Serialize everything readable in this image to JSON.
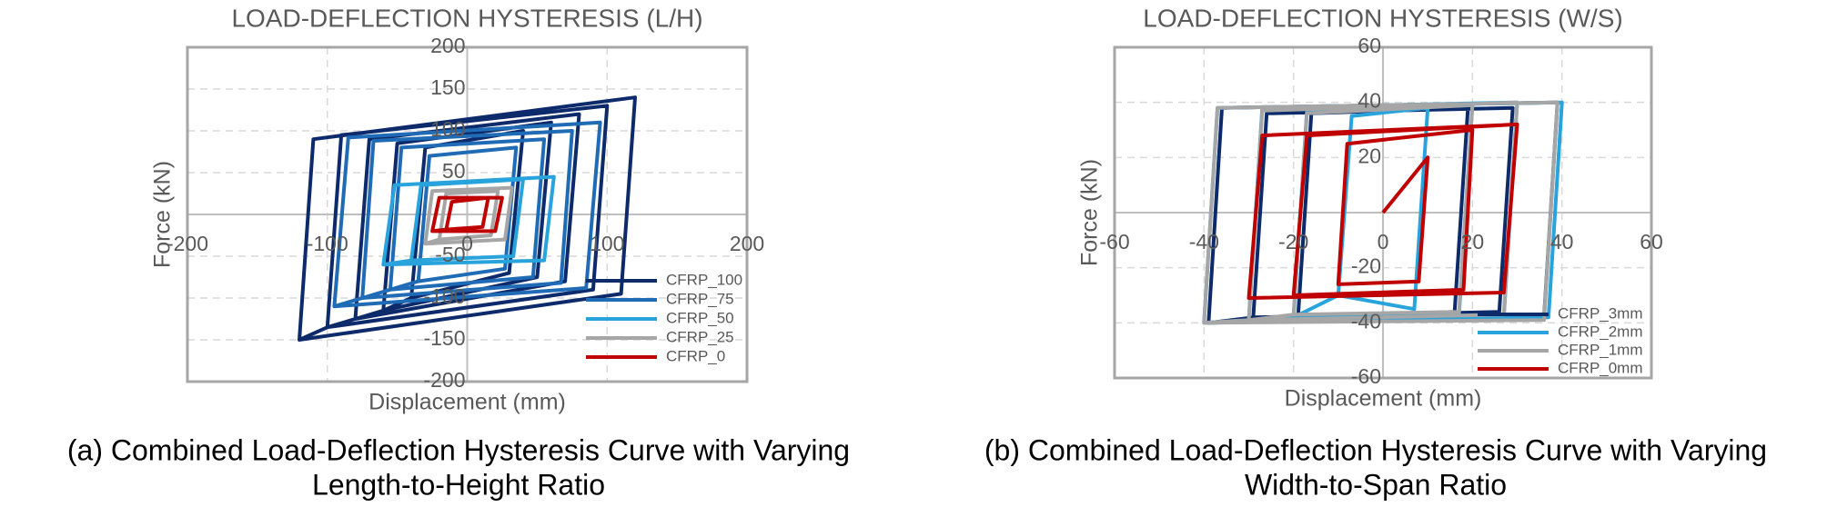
{
  "chart_data": [
    {
      "type": "line",
      "title": "LOAD-DEFLECTION HYSTERESIS (L/H)",
      "xlabel": "Displacement (mm)",
      "ylabel": "Force (kN)",
      "caption": [
        "(a) Combined Load-Deflection Hysteresis Curve with Varying",
        "Length-to-Height Ratio"
      ],
      "xlim": [
        -200,
        200
      ],
      "ylim": [
        -200,
        200
      ],
      "xticks": [
        -200,
        -100,
        0,
        100,
        200
      ],
      "yticks": [
        -200,
        -150,
        -100,
        -50,
        50,
        100,
        150,
        200
      ],
      "grid": true,
      "legend": "lower right",
      "series": [
        {
          "name": "CFRP_100",
          "color": "#0d2a6b",
          "x": [
            -40,
            -30,
            40,
            30,
            -40,
            -60,
            -50,
            60,
            50,
            -60,
            -80,
            -70,
            80,
            70,
            -80,
            -100,
            -90,
            100,
            90,
            -100,
            -120,
            -110,
            120,
            110,
            -120
          ],
          "y": [
            -100,
            80,
            100,
            -70,
            -100,
            -115,
            85,
            110,
            -75,
            -115,
            -125,
            90,
            120,
            -80,
            -125,
            -135,
            95,
            130,
            -90,
            -135,
            -150,
            90,
            140,
            -95,
            -150
          ]
        },
        {
          "name": "CFRP_75",
          "color": "#1f6bb5",
          "x": [
            -35,
            -27,
            35,
            27,
            -35,
            -55,
            -47,
            55,
            47,
            -55,
            -75,
            -67,
            75,
            67,
            -75,
            -95,
            -85,
            95,
            85,
            -95
          ],
          "y": [
            -80,
            70,
            80,
            -65,
            -80,
            -90,
            80,
            90,
            -75,
            -90,
            -100,
            88,
            100,
            -82,
            -100,
            -110,
            92,
            110,
            -88,
            -110
          ]
        },
        {
          "name": "CFRP_50",
          "color": "#29a3dc",
          "x": [
            -40,
            -33,
            40,
            33,
            -40,
            -60,
            -52,
            62,
            55,
            -60
          ],
          "y": [
            -55,
            35,
            42,
            -50,
            -55,
            -60,
            35,
            45,
            -55,
            -60
          ]
        },
        {
          "name": "CFRP_25",
          "color": "#a6a6a6",
          "x": [
            -20,
            -15,
            22,
            17,
            -20,
            -30,
            -25,
            32,
            27,
            -30
          ],
          "y": [
            -30,
            25,
            28,
            -25,
            -30,
            -35,
            28,
            32,
            -30,
            -35
          ]
        },
        {
          "name": "CFRP_0",
          "color": "#c00000",
          "x": [
            -15,
            -11,
            15,
            11,
            -15,
            -25,
            -20,
            25,
            20,
            -25
          ],
          "y": [
            -18,
            15,
            20,
            -15,
            -18,
            -20,
            20,
            20,
            -20,
            -20
          ]
        }
      ]
    },
    {
      "type": "line",
      "title": "LOAD-DEFLECTION HYSTERESIS (W/S)",
      "xlabel": "Displacement (mm)",
      "ylabel": "Force (kN)",
      "caption": [
        "(b) Combined Load-Deflection Hysteresis Curve with Varying",
        "Width-to-Span Ratio"
      ],
      "xlim": [
        -60,
        60
      ],
      "ylim": [
        -60,
        60
      ],
      "xticks": [
        -60,
        -40,
        -20,
        0,
        20,
        40,
        60
      ],
      "yticks": [
        -60,
        -40,
        -20,
        20,
        40,
        60
      ],
      "grid": true,
      "legend": "lower right",
      "series": [
        {
          "name": "CFRP_3mm",
          "color": "#0d2a6b",
          "x": [
            -19,
            -16,
            19,
            16,
            -19,
            -29,
            -26,
            29,
            26,
            -29,
            -39,
            -36,
            39,
            36,
            -39
          ],
          "y": [
            -38,
            36,
            38,
            -36,
            -38,
            -38,
            36,
            38,
            -36,
            -38,
            -40,
            38,
            40,
            -38,
            -40
          ]
        },
        {
          "name": "CFRP_2mm",
          "color": "#29a3dc",
          "x": [
            -10,
            -7,
            10,
            7,
            -10,
            -20,
            -17,
            20,
            17,
            -20,
            -30,
            -27,
            30,
            27,
            -30,
            -40,
            -37,
            40,
            37,
            -40
          ],
          "y": [
            -30,
            35,
            38,
            -35,
            -30,
            -38,
            37,
            39,
            -37,
            -38,
            -39,
            38,
            40,
            -38,
            -39,
            -40,
            38,
            40,
            -38,
            -40
          ]
        },
        {
          "name": "CFRP_1mm",
          "color": "#a6a6a6",
          "x": [
            -20,
            -17,
            20,
            17,
            -20,
            -30,
            -27,
            30,
            27,
            -30,
            -40,
            -37,
            39,
            36,
            -40
          ],
          "y": [
            -37,
            36,
            39,
            -36,
            -37,
            -39,
            37,
            40,
            -37,
            -39,
            -40,
            38,
            40,
            -39,
            -40
          ]
        },
        {
          "name": "CFRP_0mm",
          "color": "#c00000",
          "x": [
            0,
            10,
            8,
            -10,
            -8,
            20,
            18,
            -20,
            -17,
            30,
            27,
            -30,
            -27,
            30
          ],
          "y": [
            0,
            20,
            -25,
            -26,
            25,
            30,
            -28,
            -30,
            28,
            32,
            -29,
            -31,
            28,
            32
          ]
        }
      ]
    }
  ]
}
